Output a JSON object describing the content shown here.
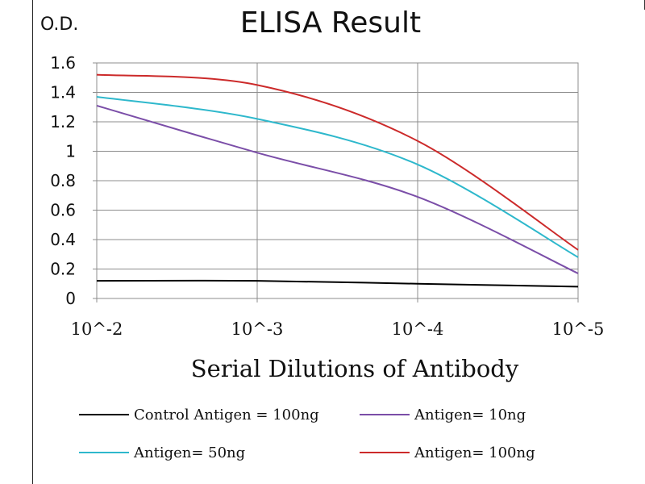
{
  "chart_data": {
    "type": "line",
    "title": "ELISA Result",
    "ylabel": "O.D.",
    "xlabel": "Serial Dilutions of Antibody",
    "x_ticks": [
      "10^-2",
      "10^-3",
      "10^-4",
      "10^-5"
    ],
    "x": [
      -2,
      -3,
      -4,
      -5
    ],
    "ylim": [
      0,
      1.6
    ],
    "y_ticks": [
      "0",
      "0.2",
      "0.4",
      "0.6",
      "0.8",
      "1",
      "1.2",
      "1.4",
      "1.6"
    ],
    "grid": true,
    "legend_position": "bottom",
    "series": [
      {
        "name": "Control Antigen = 100ng",
        "color": "#000000",
        "values": [
          0.12,
          0.12,
          0.1,
          0.08
        ]
      },
      {
        "name": "Antigen= 10ng",
        "color": "#7b4ea8",
        "values": [
          1.31,
          0.99,
          0.69,
          0.17
        ]
      },
      {
        "name": "Antigen= 50ng",
        "color": "#2eb8cc",
        "values": [
          1.37,
          1.22,
          0.91,
          0.28
        ]
      },
      {
        "name": "Antigen= 100ng",
        "color": "#cc2a2a",
        "values": [
          1.52,
          1.45,
          1.07,
          0.33
        ]
      }
    ]
  }
}
